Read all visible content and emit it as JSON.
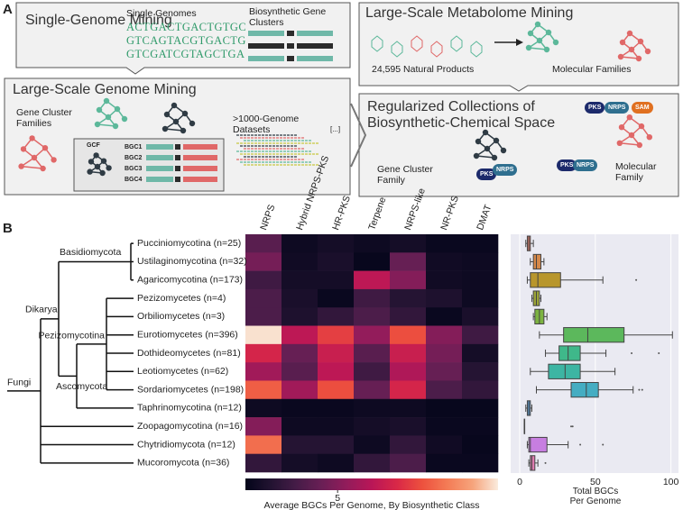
{
  "panel_a": {
    "label": "A",
    "single_genome": {
      "title": "Single-Genome Mining",
      "genomes_label": "Single Genomes",
      "sequences": [
        "ACTGACTGACTGTGC",
        "GTCAGTACGTGACTG",
        "GTCGATCGTAGCTGA"
      ],
      "clusters_label": "Biosynthetic Gene\nClusters"
    },
    "genome_mining": {
      "title": "Large-Scale Genome Mining",
      "families_label": "Gene Cluster\nFamilies",
      "gcf": "GCF",
      "bgcs": [
        "BGC1",
        "BGC2",
        "BGC3",
        "BGC4"
      ],
      "datasets_label": ">1000-Genome\nDatasets",
      "ellipsis": "[...]"
    },
    "metabolome": {
      "title": "Large-Scale Metabolome Mining",
      "products_label": "24,595 Natural Products",
      "families_label": "Molecular Families"
    },
    "regularized": {
      "title": "Regularized Collections of\nBiosynthetic-Chemical Space",
      "badges": [
        "PKS",
        "NRPS",
        "SAM",
        "PKS",
        "NRPS",
        "PKS",
        "NRPS"
      ],
      "gcf_label": "Gene Cluster\nFamily",
      "mf_label": "Molecular\nFamily"
    }
  },
  "panel_b": {
    "label": "B",
    "tree": {
      "root": "Fungi",
      "clades": [
        "Dikarya",
        "Basidiomycota",
        "Pezizomycotina",
        "Ascomycota"
      ]
    }
  },
  "chart_data": [
    {
      "type": "heatmap",
      "x_categories": [
        "NRPS",
        "Hybrid NRPS-PKS",
        "HR-PKS",
        "Terpene",
        "NRPS-like",
        "NR-PKS",
        "DMAT"
      ],
      "y_categories": [
        "Pucciniomycotina (n=25)",
        "Ustilaginomycotina (n=32)",
        "Agaricomycotina (n=173)",
        "Pezizomycetes (n=4)",
        "Orbiliomycetes (n=3)",
        "Eurotiomycetes (n=396)",
        "Dothideomycetes (n=81)",
        "Leotiomycetes (n=62)",
        "Sordariomycetes (n=198)",
        "Taphrinomycotina (n=12)",
        "Zoopagomycotina (n=16)",
        "Chytridiomycota (n=12)",
        "Mucoromycota (n=36)"
      ],
      "values": [
        [
          3.5,
          0.5,
          0.8,
          0.5,
          0.8,
          0.3,
          0.3
        ],
        [
          4.5,
          0.6,
          1,
          0.2,
          4,
          0.6,
          0.5
        ],
        [
          2.5,
          0.8,
          0.8,
          7,
          5,
          0.6,
          0.5
        ],
        [
          3,
          1,
          0.3,
          2.5,
          1.5,
          1.2,
          0.5
        ],
        [
          3,
          1.2,
          2,
          3,
          2,
          0.3,
          1
        ],
        [
          13.5,
          7,
          9,
          5.5,
          9.5,
          5,
          2.5
        ],
        [
          8,
          4,
          7.5,
          3.5,
          7.5,
          4.5,
          0.8
        ],
        [
          6,
          3.5,
          7,
          2.5,
          6.5,
          4,
          1.5
        ],
        [
          10,
          6,
          9.5,
          4,
          8,
          3,
          2
        ],
        [
          0.5,
          0.3,
          0.3,
          0.5,
          0.5,
          0.2,
          0.2
        ],
        [
          5,
          0.5,
          0.5,
          0.8,
          1,
          0.3,
          0.3
        ],
        [
          10.5,
          1.5,
          1.5,
          0.5,
          2,
          0.6,
          0.2
        ],
        [
          2,
          0.8,
          0.5,
          2,
          3,
          0.3,
          0.3
        ]
      ],
      "colormap": "rocket",
      "zlim": [
        0,
        13.7
      ],
      "colorbar_ticks": [
        5
      ],
      "colorbar_label": "Average BGCs Per Genome, By Biosynthetic Class"
    },
    {
      "type": "box",
      "xlabel": "Total BGCs\nPer Genome",
      "xlim": [
        -6,
        105
      ],
      "xticks": [
        0,
        50,
        100
      ],
      "grid": true,
      "boxes": [
        {
          "color": "#e07b6a",
          "stats": [
            4,
            5,
            6,
            7,
            9
          ],
          "outliers": []
        },
        {
          "color": "#d4884a",
          "stats": [
            7,
            9,
            11,
            14,
            16
          ],
          "outliers": []
        },
        {
          "color": "#b8962c",
          "stats": [
            5,
            7,
            12,
            27,
            55
          ],
          "outliers": [
            77
          ]
        },
        {
          "color": "#9ba437",
          "stats": [
            8,
            9,
            11,
            13,
            14
          ],
          "outliers": []
        },
        {
          "color": "#7cb341",
          "stats": [
            9,
            10,
            13,
            16,
            18
          ],
          "outliers": []
        },
        {
          "color": "#5cb85c",
          "stats": [
            13,
            29,
            45,
            69,
            101
          ],
          "outliers": []
        },
        {
          "color": "#3fb88a",
          "stats": [
            17,
            26,
            32,
            40,
            57
          ],
          "outliers": [
            74,
            92
          ]
        },
        {
          "color": "#3db5a3",
          "stats": [
            7,
            19,
            30,
            40,
            63
          ],
          "outliers": []
        },
        {
          "color": "#45adc2",
          "stats": [
            11,
            34,
            44,
            52,
            75
          ],
          "outliers": [
            79,
            81
          ]
        },
        {
          "color": "#5b9bd5",
          "stats": [
            4,
            5,
            6,
            7,
            8
          ],
          "outliers": []
        },
        {
          "color": "#8b8be0",
          "stats": [
            3,
            3,
            3,
            3,
            3
          ],
          "outliers": [
            34,
            35
          ]
        },
        {
          "color": "#c77ee0",
          "stats": [
            5,
            6,
            7,
            18,
            32
          ],
          "outliers": [
            40,
            55
          ]
        },
        {
          "color": "#e07bb0",
          "stats": [
            6,
            7,
            8,
            10,
            12
          ],
          "outliers": [
            17
          ]
        }
      ]
    }
  ]
}
